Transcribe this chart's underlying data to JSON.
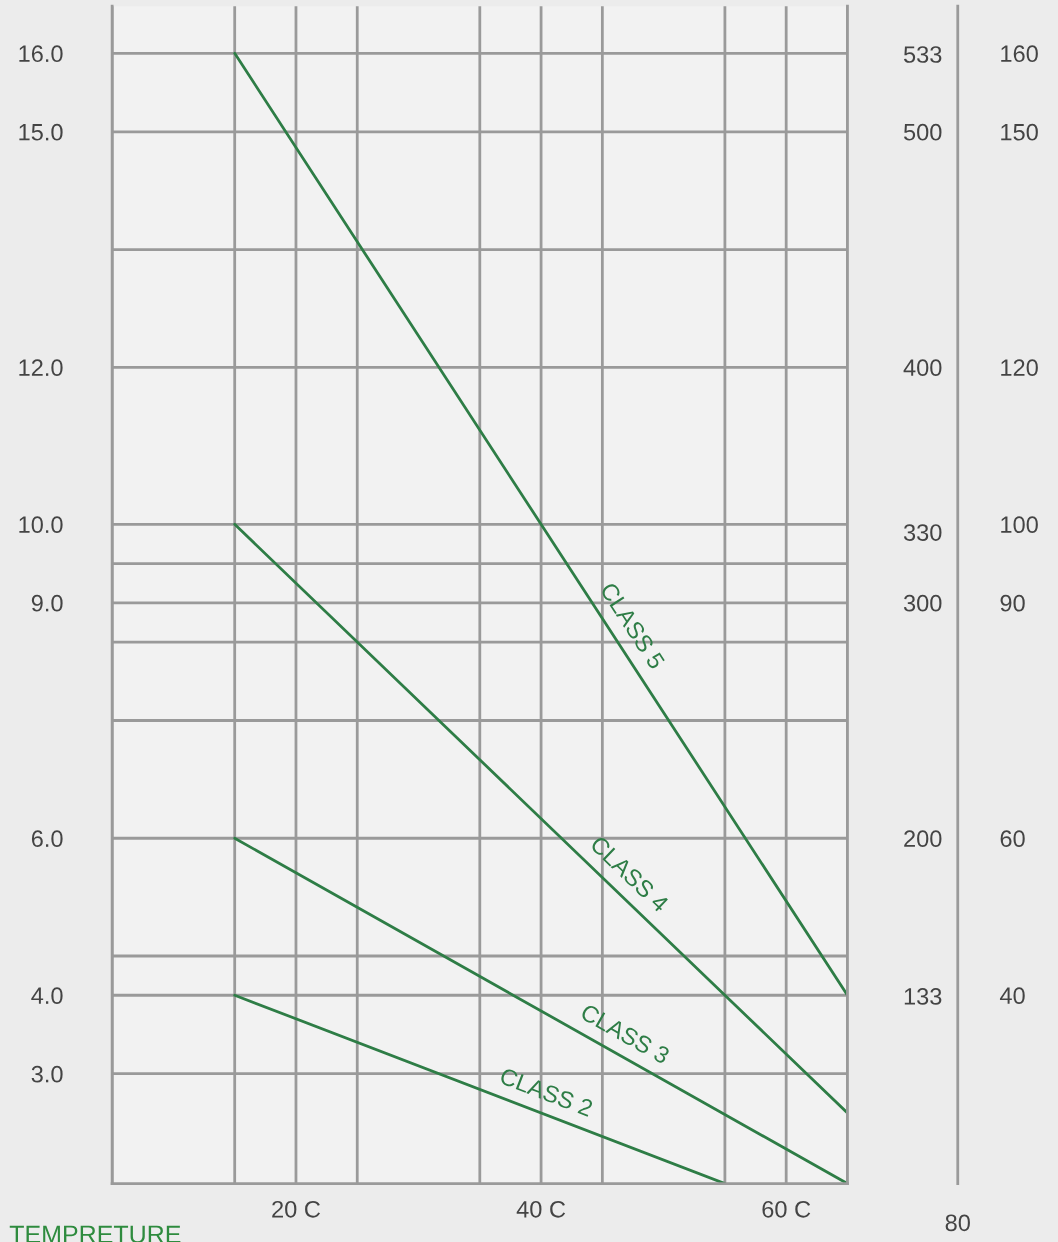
{
  "chart_data": {
    "type": "line",
    "xlabel": "TEMPRETURE",
    "xlim": [
      5,
      65
    ],
    "xticks": [
      {
        "value": 5,
        "label": null
      },
      {
        "value": 15,
        "label": null
      },
      {
        "value": 20,
        "label": "20 C"
      },
      {
        "value": 25,
        "label": null
      },
      {
        "value": 35,
        "label": null
      },
      {
        "value": 40,
        "label": "40 C"
      },
      {
        "value": 45,
        "label": null
      },
      {
        "value": 55,
        "label": null
      },
      {
        "value": 60,
        "label": "60 C"
      },
      {
        "value": 65,
        "label": null
      }
    ],
    "ylim": [
      1.6,
      16.6
    ],
    "yticks": [
      {
        "value": 3,
        "label": "3.0"
      },
      {
        "value": 4,
        "label": "4.0"
      },
      {
        "value": 4.5,
        "label": null
      },
      {
        "value": 6,
        "label": "6.0"
      },
      {
        "value": 7.5,
        "label": null
      },
      {
        "value": 8.5,
        "label": null
      },
      {
        "value": 9,
        "label": "9.0"
      },
      {
        "value": 9.5,
        "label": null
      },
      {
        "value": 10,
        "label": "10.0"
      },
      {
        "value": 12,
        "label": "12.0"
      },
      {
        "value": 13.5,
        "label": null
      },
      {
        "value": 15,
        "label": "15.0"
      },
      {
        "value": 16,
        "label": "16.0"
      }
    ],
    "y2lim": [
      53.33,
      553.33
    ],
    "y2ticks": [
      133,
      200,
      300,
      330,
      400,
      500,
      533
    ],
    "y3lim": [
      16,
      166
    ],
    "y3ticks": [
      40,
      60,
      90,
      100,
      120,
      150,
      160
    ],
    "grid": true,
    "legend": false,
    "marker": "none",
    "line_style": "solid",
    "annotations": [
      "80"
    ],
    "series": [
      {
        "name": "CLASS 5",
        "color": "#2e7d46",
        "x": [
          15,
          65
        ],
        "values": [
          16,
          4
        ]
      },
      {
        "name": "CLASS 4",
        "color": "#2e7d46",
        "x": [
          15,
          65
        ],
        "values": [
          10,
          2.5
        ]
      },
      {
        "name": "CLASS 3",
        "color": "#2e7d46",
        "x": [
          15,
          65
        ],
        "values": [
          6,
          1.6
        ]
      },
      {
        "name": "CLASS 2",
        "color": "#2e7d46",
        "x": [
          15,
          55
        ],
        "values": [
          4,
          1.6
        ]
      }
    ]
  }
}
